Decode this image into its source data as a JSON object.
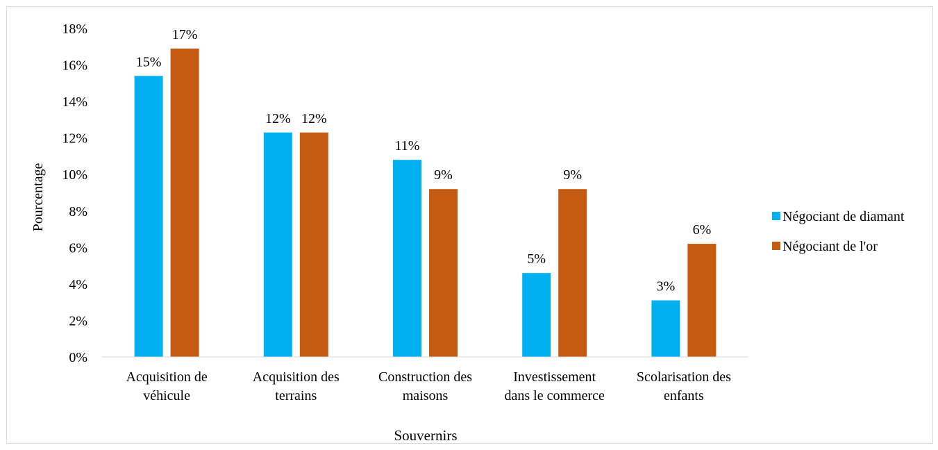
{
  "chart_data": {
    "type": "bar",
    "title": "",
    "xlabel": "Souvernirs",
    "ylabel": "Pourcentage",
    "ylim": [
      0,
      18
    ],
    "y_ticks": [
      "0%",
      "2%",
      "4%",
      "6%",
      "8%",
      "10%",
      "12%",
      "14%",
      "16%",
      "18%"
    ],
    "grid": false,
    "legend_position": "right",
    "categories": [
      [
        "Acquisition de",
        "véhicule"
      ],
      [
        "Acquisition des",
        "terrains"
      ],
      [
        "Construction des",
        "maisons"
      ],
      [
        "Investissement",
        "dans le commerce"
      ],
      [
        "Scolarisation des",
        "enfants"
      ]
    ],
    "series": [
      {
        "name": "Négociant de diamant",
        "color": "#00b0f0",
        "values": [
          15.4,
          12.3,
          10.8,
          4.6,
          3.1
        ],
        "labels": [
          "15%",
          "12%",
          "11%",
          "5%",
          "3%"
        ]
      },
      {
        "name": "Négociant de l'or",
        "color": "#c55a11",
        "values": [
          16.9,
          12.3,
          9.2,
          9.2,
          6.2
        ],
        "labels": [
          "17%",
          "12%",
          "9%",
          "9%",
          "6%"
        ]
      }
    ]
  }
}
